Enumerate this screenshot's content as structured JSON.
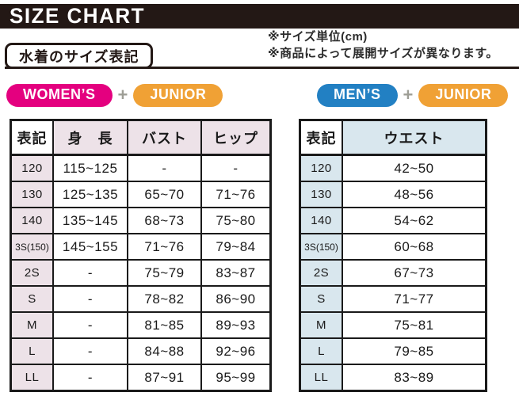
{
  "header": {
    "title": "SIZE CHART"
  },
  "section": {
    "label": "水着のサイズ表記"
  },
  "notes": {
    "line1": "※サイズ単位(cm)",
    "line2": "※商品によって展開サイズが異なります。"
  },
  "plus_sign": "+",
  "colors": {
    "title_bar_bg": "#231815",
    "title_text": "#ffffff",
    "womens_badge": "#E4007F",
    "mens_badge": "#2280C3",
    "junior_badge": "#F0A135",
    "plus_gray": "#9E9E96",
    "womens_table_accent": "#EDE2E8",
    "mens_table_accent": "#D9E7EE",
    "table_border": "#1a1a1a"
  },
  "tables": [
    {
      "name": "womens-junior-size-table",
      "badges": [
        {
          "label": "WOMEN’S",
          "bg": "#E4007F"
        },
        {
          "label": "JUNIOR",
          "bg": "#F0A135"
        }
      ],
      "accent_bg": "#EDE2E8",
      "headers": [
        "表記",
        "身　長",
        "バスト",
        "ヒップ"
      ],
      "rows": [
        [
          "120",
          "115~125",
          "-",
          "-"
        ],
        [
          "130",
          "125~135",
          "65~70",
          "71~76"
        ],
        [
          "140",
          "135~145",
          "68~73",
          "75~80"
        ],
        [
          "3S(150)",
          "145~155",
          "71~76",
          "79~84"
        ],
        [
          "2S",
          "-",
          "75~79",
          "83~87"
        ],
        [
          "S",
          "-",
          "78~82",
          "86~90"
        ],
        [
          "M",
          "-",
          "81~85",
          "89~93"
        ],
        [
          "L",
          "-",
          "84~88",
          "92~96"
        ],
        [
          "LL",
          "-",
          "87~91",
          "95~99"
        ]
      ]
    },
    {
      "name": "mens-junior-size-table",
      "badges": [
        {
          "label": "MEN’S",
          "bg": "#2280C3"
        },
        {
          "label": "JUNIOR",
          "bg": "#F0A135"
        }
      ],
      "accent_bg": "#D9E7EE",
      "headers": [
        "表記",
        "ウエスト"
      ],
      "rows": [
        [
          "120",
          "42~50"
        ],
        [
          "130",
          "48~56"
        ],
        [
          "140",
          "54~62"
        ],
        [
          "3S(150)",
          "60~68"
        ],
        [
          "2S",
          "67~73"
        ],
        [
          "S",
          "71~77"
        ],
        [
          "M",
          "75~81"
        ],
        [
          "L",
          "79~85"
        ],
        [
          "LL",
          "83~89"
        ]
      ]
    }
  ]
}
